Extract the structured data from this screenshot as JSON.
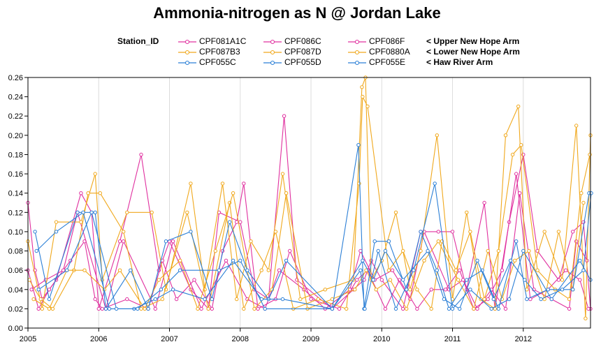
{
  "chart_data": {
    "type": "line",
    "title": "Ammonia-nitrogen as N @ Jordan Lake",
    "legend_title": "Station_ID",
    "xlabel": "",
    "ylabel": "",
    "xlim": [
      2005,
      2012.95
    ],
    "ylim": [
      0,
      0.26
    ],
    "x_ticks": [
      2005,
      2006,
      2007,
      2008,
      2009,
      2010,
      2011,
      2012
    ],
    "x_tick_labels": [
      "2005",
      "2006",
      "2007",
      "2008",
      "2009",
      "2010",
      "2011",
      "2012"
    ],
    "y_ticks": [
      0,
      0.02,
      0.04,
      0.06,
      0.08,
      0.1,
      0.12,
      0.14,
      0.16,
      0.18,
      0.2,
      0.22,
      0.24,
      0.26
    ],
    "y_tick_labels": [
      "0.00",
      "0.02",
      "0.04",
      "0.06",
      "0.08",
      "0.10",
      "0.12",
      "0.14",
      "0.16",
      "0.18",
      "0.20",
      "0.22",
      "0.24",
      "0.26"
    ],
    "grid": "vertical-years",
    "legend_placement": "top",
    "legend_notes": [
      "< Upper New Hope Arm",
      "< Lower New Hope Arm",
      "< Haw River Arm"
    ],
    "colors": {
      "magenta": "#e0309f",
      "orange": "#f0a81c",
      "blue": "#2b7fd6"
    },
    "series": [
      {
        "name": "CPF081A1C",
        "color": "#e0309f",
        "x": [
          2005.0,
          2005.1,
          2005.2,
          2005.4,
          2005.75,
          2005.9,
          2006.0,
          2006.3,
          2006.6,
          2006.85,
          2007.0,
          2007.3,
          2007.55,
          2007.7,
          2008.0,
          2008.2,
          2008.4,
          2008.62,
          2008.8,
          2009.3,
          2009.6,
          2009.75,
          2009.85,
          2010.0,
          2010.3,
          2010.55,
          2010.8,
          2011.0,
          2011.2,
          2011.45,
          2011.6,
          2011.8,
          2012.0,
          2012.2,
          2012.5,
          2012.7,
          2012.85,
          2012.95
        ],
        "y": [
          0.13,
          0.06,
          0.03,
          0.05,
          0.14,
          0.12,
          0.02,
          0.09,
          0.18,
          0.06,
          0.09,
          0.04,
          0.02,
          0.12,
          0.11,
          0.04,
          0.03,
          0.22,
          0.05,
          0.02,
          0.04,
          0.05,
          0.07,
          0.05,
          0.02,
          0.1,
          0.1,
          0.1,
          0.04,
          0.13,
          0.02,
          0.11,
          0.18,
          0.08,
          0.05,
          0.1,
          0.11,
          0.02
        ]
      },
      {
        "name": "CPF086C",
        "color": "#e0309f",
        "x": [
          2005.0,
          2005.15,
          2005.3,
          2005.6,
          2005.8,
          2005.95,
          2006.05,
          2006.4,
          2006.7,
          2006.9,
          2007.1,
          2007.35,
          2007.6,
          2007.75,
          2007.95,
          2008.05,
          2008.25,
          2008.5,
          2008.7,
          2009.0,
          2009.4,
          2009.65,
          2009.8,
          2010.05,
          2010.25,
          2010.5,
          2010.7,
          2010.9,
          2011.1,
          2011.3,
          2011.5,
          2011.7,
          2011.9,
          2012.1,
          2012.35,
          2012.6,
          2012.8,
          2012.92
        ],
        "y": [
          0.06,
          0.02,
          0.04,
          0.07,
          0.09,
          0.03,
          0.02,
          0.03,
          0.02,
          0.07,
          0.03,
          0.05,
          0.02,
          0.08,
          0.11,
          0.15,
          0.02,
          0.03,
          0.08,
          0.03,
          0.02,
          0.05,
          0.06,
          0.02,
          0.05,
          0.02,
          0.04,
          0.04,
          0.06,
          0.02,
          0.03,
          0.06,
          0.16,
          0.03,
          0.04,
          0.06,
          0.05,
          0.02
        ]
      },
      {
        "name": "CPF086F",
        "color": "#e0309f",
        "x": [
          2005.05,
          2005.25,
          2005.5,
          2005.7,
          2006.1,
          2006.35,
          2006.8,
          2007.05,
          2007.45,
          2007.8,
          2008.1,
          2008.35,
          2008.55,
          2008.9,
          2009.2,
          2009.55,
          2009.7,
          2009.9,
          2010.15,
          2010.4,
          2010.6,
          2010.95,
          2011.15,
          2011.35,
          2011.55,
          2011.75,
          2011.95,
          2012.15,
          2012.4,
          2012.65,
          2012.75,
          2012.9
        ],
        "y": [
          0.04,
          0.05,
          0.06,
          0.12,
          0.02,
          0.09,
          0.02,
          0.09,
          0.02,
          0.07,
          0.03,
          0.02,
          0.06,
          0.04,
          0.02,
          0.04,
          0.08,
          0.05,
          0.06,
          0.03,
          0.1,
          0.04,
          0.05,
          0.02,
          0.04,
          0.02,
          0.14,
          0.04,
          0.03,
          0.02,
          0.09,
          0.07
        ]
      },
      {
        "name": "CPF087B3",
        "color": "#f0a81c",
        "x": [
          2005.0,
          2005.2,
          2005.4,
          2005.75,
          2005.95,
          2006.05,
          2006.4,
          2006.75,
          2006.95,
          2007.3,
          2007.5,
          2007.75,
          2007.95,
          2008.15,
          2008.4,
          2008.6,
          2008.85,
          2009.2,
          2009.6,
          2009.72,
          2009.77,
          2009.85,
          2010.0,
          2010.2,
          2010.4,
          2010.55,
          2010.78,
          2011.0,
          2011.2,
          2011.4,
          2011.6,
          2011.75,
          2011.93,
          2012.05,
          2012.3,
          2012.55,
          2012.75,
          2012.88,
          2012.95
        ],
        "y": [
          0.09,
          0.02,
          0.11,
          0.11,
          0.16,
          0.05,
          0.12,
          0.12,
          0.04,
          0.15,
          0.04,
          0.15,
          0.03,
          0.09,
          0.06,
          0.16,
          0.03,
          0.04,
          0.05,
          0.25,
          0.26,
          0.05,
          0.07,
          0.12,
          0.04,
          0.08,
          0.2,
          0.03,
          0.12,
          0.03,
          0.02,
          0.2,
          0.23,
          0.04,
          0.1,
          0.05,
          0.21,
          0.01,
          0.2
        ]
      },
      {
        "name": "CPF087D",
        "color": "#f0a81c",
        "x": [
          2005.02,
          2005.18,
          2005.35,
          2005.65,
          2005.85,
          2006.02,
          2006.35,
          2006.6,
          2006.9,
          2007.25,
          2007.55,
          2007.85,
          2008.05,
          2008.3,
          2008.5,
          2008.75,
          2009.1,
          2009.5,
          2009.68,
          2009.73,
          2009.8,
          2010.1,
          2010.3,
          2010.5,
          2010.7,
          2010.85,
          2011.05,
          2011.25,
          2011.45,
          2011.65,
          2011.85,
          2011.97,
          2012.2,
          2012.45,
          2012.65,
          2012.82,
          2012.94
        ],
        "y": [
          0.05,
          0.03,
          0.02,
          0.06,
          0.14,
          0.14,
          0.1,
          0.02,
          0.03,
          0.12,
          0.02,
          0.13,
          0.02,
          0.06,
          0.1,
          0.02,
          0.03,
          0.02,
          0.15,
          0.24,
          0.23,
          0.06,
          0.08,
          0.04,
          0.02,
          0.09,
          0.06,
          0.1,
          0.03,
          0.08,
          0.18,
          0.19,
          0.06,
          0.04,
          0.03,
          0.14,
          0.18
        ]
      },
      {
        "name": "CPF0880A",
        "color": "#f0a81c",
        "x": [
          2005.08,
          2005.3,
          2005.55,
          2005.8,
          2006.08,
          2006.3,
          2006.65,
          2006.85,
          2007.15,
          2007.4,
          2007.65,
          2007.9,
          2008.2,
          2008.45,
          2008.65,
          2008.95,
          2009.3,
          2009.62,
          2009.78,
          2009.92,
          2010.12,
          2010.35,
          2010.6,
          2010.8,
          2011.08,
          2011.3,
          2011.5,
          2011.7,
          2011.88,
          2012.08,
          2012.3,
          2012.5,
          2012.7,
          2012.85
        ],
        "y": [
          0.03,
          0.02,
          0.06,
          0.06,
          0.04,
          0.06,
          0.02,
          0.05,
          0.07,
          0.02,
          0.08,
          0.14,
          0.02,
          0.04,
          0.14,
          0.02,
          0.03,
          0.04,
          0.06,
          0.04,
          0.05,
          0.02,
          0.07,
          0.09,
          0.05,
          0.02,
          0.08,
          0.03,
          0.07,
          0.08,
          0.03,
          0.1,
          0.04,
          0.13
        ]
      },
      {
        "name": "CPF055C",
        "color": "#2b7fd6",
        "x": [
          2005.1,
          2005.3,
          2005.7,
          2005.95,
          2006.1,
          2006.45,
          2006.7,
          2006.95,
          2007.3,
          2007.6,
          2007.85,
          2008.1,
          2008.4,
          2008.65,
          2009.3,
          2009.67,
          2009.75,
          2009.9,
          2010.1,
          2010.35,
          2010.55,
          2010.78,
          2010.95,
          2011.2,
          2011.42,
          2011.65,
          2011.9,
          2012.05,
          2012.35,
          2012.7,
          2012.93
        ],
        "y": [
          0.1,
          0.03,
          0.12,
          0.12,
          0.02,
          0.06,
          0.02,
          0.09,
          0.1,
          0.03,
          0.11,
          0.06,
          0.03,
          0.07,
          0.02,
          0.19,
          0.02,
          0.09,
          0.09,
          0.04,
          0.1,
          0.06,
          0.02,
          0.05,
          0.06,
          0.02,
          0.09,
          0.03,
          0.04,
          0.04,
          0.14
        ]
      },
      {
        "name": "CPF055D",
        "color": "#2b7fd6",
        "x": [
          2005.12,
          2005.4,
          2005.78,
          2006.15,
          2006.5,
          2006.8,
          2007.05,
          2007.5,
          2007.9,
          2008.3,
          2008.6,
          2009.3,
          2009.7,
          2009.76,
          2009.95,
          2010.2,
          2010.45,
          2010.75,
          2011.0,
          2011.25,
          2011.55,
          2011.8,
          2012.0,
          2012.4,
          2012.8,
          2012.95
        ],
        "y": [
          0.08,
          0.1,
          0.12,
          0.02,
          0.02,
          0.03,
          0.04,
          0.03,
          0.07,
          0.03,
          0.03,
          0.02,
          0.06,
          0.02,
          0.08,
          0.02,
          0.06,
          0.15,
          0.02,
          0.04,
          0.02,
          0.03,
          0.08,
          0.03,
          0.07,
          0.05
        ]
      },
      {
        "name": "CPF055E",
        "color": "#2b7fd6",
        "x": [
          2005.15,
          2005.55,
          2005.9,
          2006.25,
          2006.55,
          2006.88,
          2007.15,
          2007.7,
          2008.0,
          2008.35,
          2009.3,
          2009.73,
          2009.88,
          2010.05,
          2010.3,
          2010.65,
          2010.88,
          2011.1,
          2011.35,
          2011.58,
          2011.82,
          2012.02,
          2012.25,
          2012.55,
          2012.85,
          2012.96
        ],
        "y": [
          0.04,
          0.06,
          0.12,
          0.02,
          0.02,
          0.04,
          0.06,
          0.06,
          0.07,
          0.02,
          0.02,
          0.07,
          0.05,
          0.08,
          0.05,
          0.08,
          0.03,
          0.02,
          0.07,
          0.03,
          0.07,
          0.05,
          0.03,
          0.04,
          0.06,
          0.14
        ]
      }
    ]
  }
}
